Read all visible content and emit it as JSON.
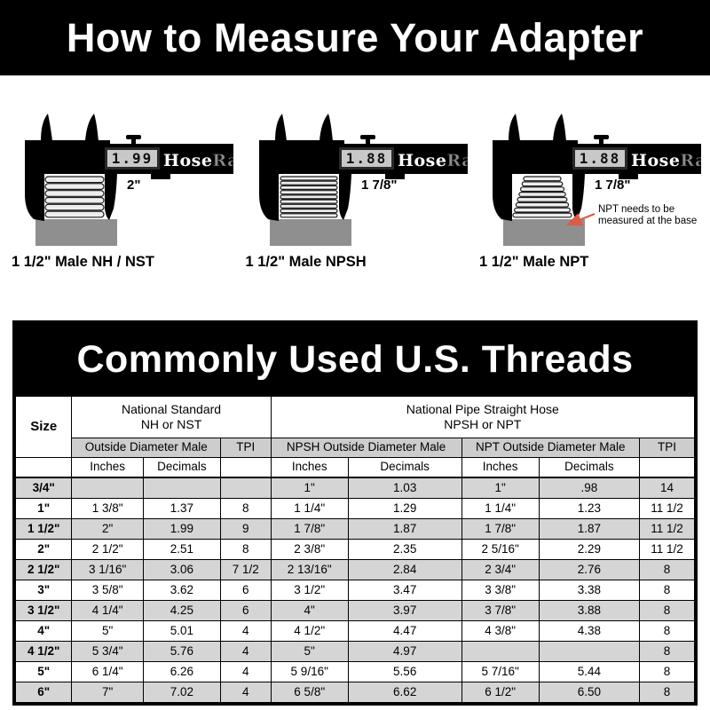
{
  "top_banner": {
    "title": "How to Measure Your Adapter"
  },
  "caliper_brand": {
    "hose": "Hose",
    "rack": "Rack"
  },
  "figures": [
    {
      "reading": "1.99",
      "measure_label": "2\"",
      "caption": "1 1/2\" Male NH / NST",
      "threads": {
        "type": "straight-coarse",
        "count": 6,
        "top_width": 66,
        "bottom_width": 66
      }
    },
    {
      "reading": "1.88",
      "measure_label": "1 7/8\"",
      "caption": "1 1/2\" Male NPSH",
      "threads": {
        "type": "straight-fine",
        "count": 9,
        "top_width": 64,
        "bottom_width": 64
      }
    },
    {
      "reading": "1.88",
      "measure_label": "1 7/8\"",
      "caption": "1 1/2\" Male NPT",
      "threads": {
        "type": "tapered",
        "count": 8,
        "top_width": 42,
        "bottom_width": 66
      },
      "annotation": {
        "line1": "NPT needs to be",
        "line2": "measured at the base"
      }
    }
  ],
  "table": {
    "title": "Commonly Used U.S. Threads",
    "size_header": "Size",
    "group1_line1": "National Standard",
    "group1_line2": "NH or NST",
    "group2_line1": "National Pipe Straight Hose",
    "group2_line2": "NPSH or NPT",
    "sub1": "Outside Diameter Male",
    "sub2": "TPI",
    "sub3": "NPSH Outside Diameter Male",
    "sub4": "NPT Outside Diameter Male",
    "sub5": "TPI",
    "units": {
      "inches": "Inches",
      "decimals": "Decimals"
    },
    "rows": [
      [
        "3/4\"",
        "",
        "",
        "",
        "1\"",
        "1.03",
        "1\"",
        ".98",
        "14"
      ],
      [
        "1\"",
        "1 3/8\"",
        "1.37",
        "8",
        "1 1/4\"",
        "1.29",
        "1 1/4\"",
        "1.23",
        "11 1/2"
      ],
      [
        "1 1/2\"",
        "2\"",
        "1.99",
        "9",
        "1 7/8\"",
        "1.87",
        "1 7/8\"",
        "1.87",
        "11 1/2"
      ],
      [
        "2\"",
        "2 1/2\"",
        "2.51",
        "8",
        "2 3/8\"",
        "2.35",
        "2 5/16\"",
        "2.29",
        "11 1/2"
      ],
      [
        "2 1/2\"",
        "3 1/16\"",
        "3.06",
        "7 1/2",
        "2 13/16\"",
        "2.84",
        "2 3/4\"",
        "2.76",
        "8"
      ],
      [
        "3\"",
        "3 5/8\"",
        "3.62",
        "6",
        "3 1/2\"",
        "3.47",
        "3 3/8\"",
        "3.38",
        "8"
      ],
      [
        "3 1/2\"",
        "4 1/4\"",
        "4.25",
        "6",
        "4\"",
        "3.97",
        "3 7/8\"",
        "3.88",
        "8"
      ],
      [
        "4\"",
        "5\"",
        "5.01",
        "4",
        "4 1/2\"",
        "4.47",
        "4 3/8\"",
        "4.38",
        "8"
      ],
      [
        "4 1/2\"",
        "5 3/4\"",
        "5.76",
        "4",
        "5\"",
        "4.97",
        "",
        "",
        "8"
      ],
      [
        "5\"",
        "6 1/4\"",
        "6.26",
        "4",
        "5 9/16\"",
        "5.56",
        "5 7/16\"",
        "5.44",
        "8"
      ],
      [
        "6\"",
        "7\"",
        "7.02",
        "4",
        "6 5/8\"",
        "6.62",
        "6 1/2\"",
        "6.50",
        "8"
      ]
    ]
  },
  "colors": {
    "banner_bg": "#000000",
    "banner_text": "#ffffff",
    "row_shade": "#d5d5d5",
    "header_shade": "#cdcdcd",
    "base_gray": "#8f8f8f",
    "lcd_bg": "#c8c8c8",
    "brand_rack_gray": "#8c8c8c",
    "arrow_red": "#dd5b45"
  }
}
